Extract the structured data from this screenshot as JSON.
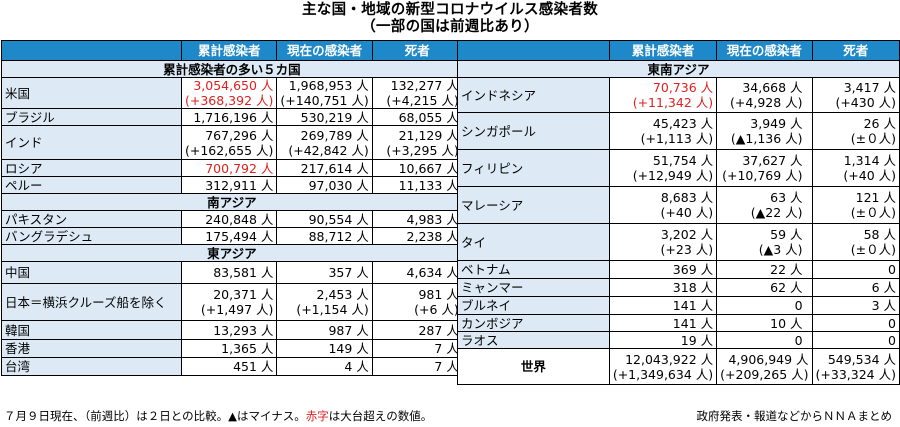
{
  "title": {
    "line1": "主な国・地域の新型コロナウイルス感染者数",
    "line2": "（一部の国は前週比あり）"
  },
  "headers": {
    "cumulative": "累計感染者",
    "current": "現在の感染者",
    "deaths": "死者"
  },
  "left": {
    "section_top5": "累計感染者の多い５カ国",
    "section_south_asia": "南アジア",
    "section_east_asia": "東アジア",
    "rows": [
      {
        "name": "米国",
        "c1": "3,054,650 人",
        "c1b": "(+368,392 人)",
        "c2": "1,968,953 人",
        "c2b": "(+140,751 人)",
        "c3": "132,277 人",
        "c3b": "(+4,215 人)",
        "red": true
      },
      {
        "name": "ブラジル",
        "c1": "1,716,196 人",
        "c2": "530,219 人",
        "c3": "68,055 人"
      },
      {
        "name": "インド",
        "c1": "767,296 人",
        "c1b": "(+162,655 人)",
        "c2": "269,789 人",
        "c2b": "(+42,842 人)",
        "c3": "21,129 人",
        "c3b": "(+3,295 人)"
      },
      {
        "name": "ロシア",
        "c1": "700,792 人",
        "c2": "217,614 人",
        "c3": "10,667 人",
        "red": true
      },
      {
        "name": "ペルー",
        "c1": "312,911 人",
        "c2": "97,030 人",
        "c3": "11,133 人"
      },
      {
        "name": "パキスタン",
        "c1": "240,848 人",
        "c2": "90,554 人",
        "c3": "4,983 人"
      },
      {
        "name": "バングラデシュ",
        "c1": "175,494 人",
        "c2": "88,712 人",
        "c3": "2,238 人"
      },
      {
        "name": "中国",
        "c1": "83,581 人",
        "c2": "357 人",
        "c3": "4,634 人"
      },
      {
        "name": "日本＝横浜クルーズ船を除く",
        "c1": "20,371 人",
        "c1b": "(+1,497 人)",
        "c2": "2,453 人",
        "c2b": "(+1,154 人)",
        "c3": "981 人",
        "c3b": "(+6 人)"
      },
      {
        "name": "韓国",
        "c1": "13,293 人",
        "c2": "987 人",
        "c3": "287 人"
      },
      {
        "name": "香港",
        "c1": "1,365 人",
        "c2": "149 人",
        "c3": "7 人"
      },
      {
        "name": "台湾",
        "c1": "451 人",
        "c2": "4 人",
        "c3": "7 人"
      }
    ]
  },
  "right": {
    "section_sea": "東南アジア",
    "rows": [
      {
        "name": "インドネシア",
        "c1": "70,736 人",
        "c1b": "(+11,342 人)",
        "c2": "34,668 人",
        "c2b": "(+4,928 人)",
        "c3": "3,417 人",
        "c3b": "(+430 人)",
        "red": true
      },
      {
        "name": "シンガポール",
        "c1": "45,423 人",
        "c1b": "(+1,113 人)",
        "c2": "3,949 人",
        "c2b": "(▲1,136 人)",
        "c3": "26 人",
        "c3b": "(±０人)"
      },
      {
        "name": "フィリピン",
        "c1": "51,754 人",
        "c1b": "(+12,949 人)",
        "c2": "37,627 人",
        "c2b": "(+10,769 人)",
        "c3": "1,314 人",
        "c3b": "(+40 人)"
      },
      {
        "name": "マレーシア",
        "c1": "8,683 人",
        "c1b": "(+40 人)",
        "c2": "63 人",
        "c2b": "(▲22 人)",
        "c3": "121 人",
        "c3b": "(±０人)"
      },
      {
        "name": "タイ",
        "c1": "3,202 人",
        "c1b": "(+23 人)",
        "c2": "59 人",
        "c2b": "(▲3 人)",
        "c3": "58 人",
        "c3b": "(±０人)"
      },
      {
        "name": "ベトナム",
        "c1": "369 人",
        "c2": "22 人",
        "c3": "0"
      },
      {
        "name": "ミャンマー",
        "c1": "318 人",
        "c2": "62 人",
        "c3": "6 人"
      },
      {
        "name": "ブルネイ",
        "c1": "141 人",
        "c2": "0",
        "c3": "3 人"
      },
      {
        "name": "カンボジア",
        "c1": "141 人",
        "c2": "10 人",
        "c3": "0"
      },
      {
        "name": "ラオス",
        "c1": "19 人",
        "c2": "0",
        "c3": "0"
      }
    ],
    "world": {
      "label": "世界",
      "c1": "12,043,922 人",
      "c1b": "(+1,349,634 人)",
      "c2": "4,906,949 人",
      "c2b": "(+209,265 人)",
      "c3": "549,534 人",
      "c3b": "(+33,324 人)"
    }
  },
  "footer": {
    "note_part1": "７月９日現在、（前週比）は２日との比較。▲はマイナス。",
    "note_red": "赤字",
    "note_part2": "は大台超えの数値。",
    "source": "政府発表・報道などからＮＮＡまとめ"
  },
  "colors": {
    "header_bg": "#1e88c9",
    "name_bg": "#ddeaf6",
    "highlight": "#e02020"
  }
}
